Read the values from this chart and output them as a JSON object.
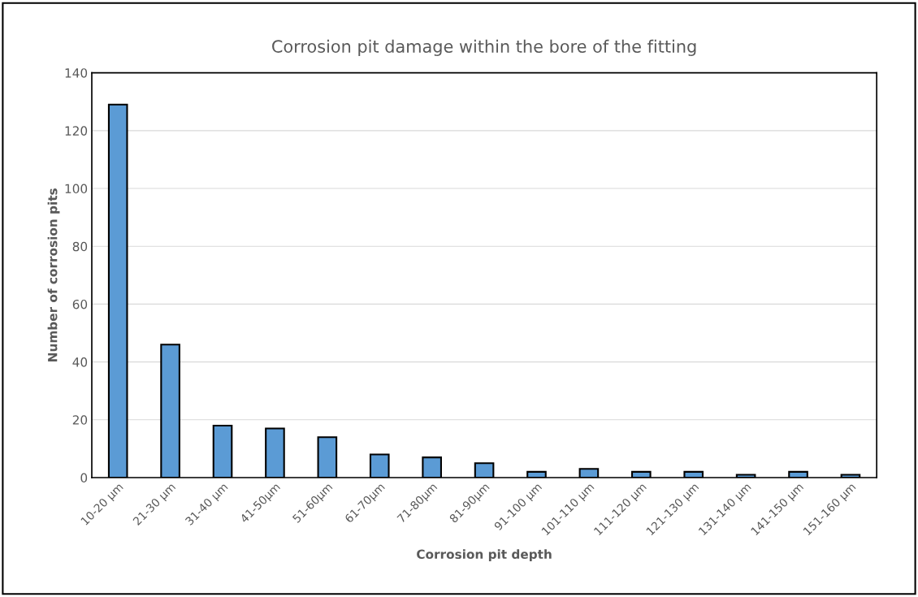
{
  "chart_data": {
    "type": "bar",
    "title": "Corrosion pit damage within the bore of the fitting",
    "xlabel": "Corrosion pit depth",
    "ylabel": "Number of corrosion pits",
    "categories": [
      "10-20 µm",
      "21-30 µm",
      "31-40 µm",
      "41-50µm",
      "51-60µm",
      "61-70µm",
      "71-80µm",
      "81-90µm",
      "91-100 µm",
      "101-110 µm",
      "111-120 µm",
      "121-130 µm",
      "131-140 µm",
      "141-150 µm",
      "151-160 µm"
    ],
    "values": [
      129,
      46,
      18,
      17,
      14,
      8,
      7,
      5,
      2,
      3,
      2,
      2,
      1,
      2,
      1
    ],
    "color": "#5b9bd5",
    "ylim": [
      0,
      140
    ],
    "yticks": [
      0,
      20,
      40,
      60,
      80,
      100,
      120,
      140
    ],
    "grid": "y"
  }
}
